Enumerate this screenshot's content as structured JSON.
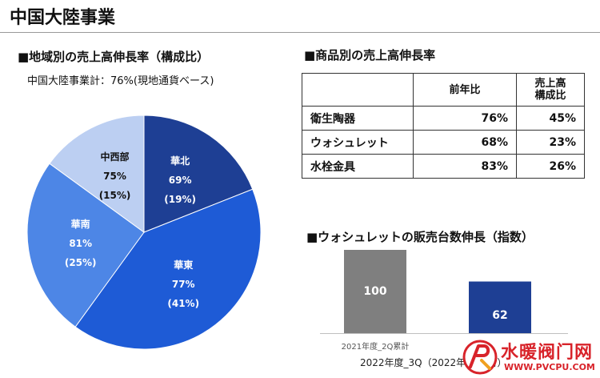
{
  "page": {
    "title": "中国大陸事業"
  },
  "pie_section": {
    "heading": "■地域別の売上高伸長率（構成比）",
    "note": "中国大陸事業計：76%(現地通貨ベース)"
  },
  "table_section": {
    "heading": "■商品別の売上高伸長率",
    "headers": [
      "",
      "前年比",
      "売上高構成比"
    ],
    "rows": [
      {
        "name": "衛生陶器",
        "yoy": "76%",
        "share": "45%"
      },
      {
        "name": "ウォシュレット",
        "yoy": "68%",
        "share": "23%"
      },
      {
        "name": "水栓金具",
        "yoy": "83%",
        "share": "26%"
      }
    ]
  },
  "bar_section": {
    "heading": "■ウォシュレットの販売台数伸長（指数）"
  },
  "watermark": {
    "text": "水暖阀门网",
    "url": "WWW.PVCPU.COM"
  },
  "colors": {
    "north": "#1e3f94",
    "east": "#1e5bd6",
    "south": "#4d86e6",
    "midwest": "#bccff2",
    "bar_prev": "#7f7f7f",
    "bar_curr": "#1e3f94"
  },
  "chart_data": [
    {
      "type": "pie",
      "slices": [
        {
          "label": "華北",
          "growth": "69%",
          "share_label": "(19%)",
          "value": 19,
          "color": "#1e3f94",
          "text_color": "#ffffff"
        },
        {
          "label": "華東",
          "growth": "77%",
          "share_label": "(41%)",
          "value": 41,
          "color": "#1e5bd6",
          "text_color": "#ffffff"
        },
        {
          "label": "華南",
          "growth": "81%",
          "share_label": "(25%)",
          "value": 25,
          "color": "#4d86e6",
          "text_color": "#ffffff"
        },
        {
          "label": "中西部",
          "growth": "75%",
          "share_label": "(15%)",
          "value": 15,
          "color": "#bccff2",
          "text_color": "#111111"
        }
      ]
    },
    {
      "type": "bar",
      "categories": [
        "2021年度_2Q累計",
        "2022年度_3Q（2022年1～9月）"
      ],
      "values": [
        100,
        62
      ],
      "colors": [
        "#7f7f7f",
        "#1e3f94"
      ],
      "ylim": [
        0,
        100
      ]
    }
  ]
}
